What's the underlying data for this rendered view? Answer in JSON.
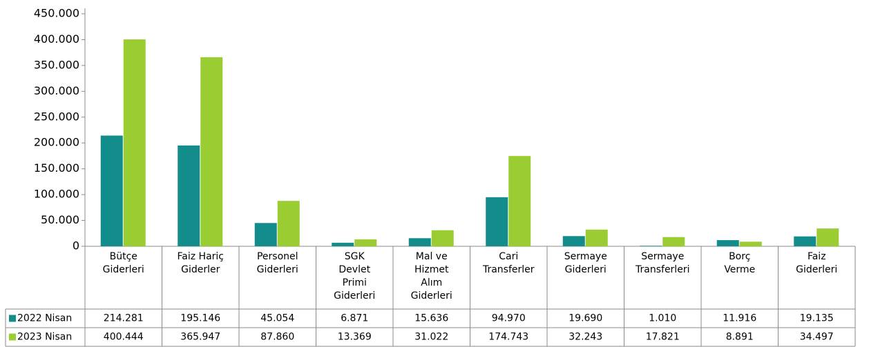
{
  "chart_data": {
    "type": "bar",
    "categories": [
      [
        "Bütçe",
        "Giderleri"
      ],
      [
        "Faiz Hariç",
        "Giderler"
      ],
      [
        "Personel",
        "Giderleri"
      ],
      [
        "SGK",
        "Devlet",
        "Primi",
        "Giderleri"
      ],
      [
        "Mal ve",
        "Hizmet",
        "Alım",
        "Giderleri"
      ],
      [
        "Cari",
        "Transferler"
      ],
      [
        "Sermaye",
        "Giderleri"
      ],
      [
        "Sermaye",
        "Transferleri"
      ],
      [
        "Borç",
        "Verme"
      ],
      [
        "Faiz",
        "Giderleri"
      ]
    ],
    "series": [
      {
        "name": "2022 Nisan",
        "color": "#138c8c",
        "values": [
          214281,
          195146,
          45054,
          6871,
          15636,
          94970,
          19690,
          1010,
          11916,
          19135
        ],
        "value_labels": [
          "214.281",
          "195.146",
          "45.054",
          "6.871",
          "15.636",
          "94.970",
          "19.690",
          "1.010",
          "11.916",
          "19.135"
        ]
      },
      {
        "name": "2023 Nisan",
        "color": "#9acd32",
        "values": [
          400444,
          365947,
          87860,
          13369,
          31022,
          174743,
          32243,
          17821,
          8891,
          34497
        ],
        "value_labels": [
          "400.444",
          "365.947",
          "87.860",
          "13.369",
          "31.022",
          "174.743",
          "32.243",
          "17.821",
          "8.891",
          "34.497"
        ]
      }
    ],
    "ylim": [
      0,
      450000
    ],
    "yticks": [
      0,
      {
        "value": 50000,
        "label": "50.000"
      },
      {
        "value": 100000,
        "label": "100.000"
      },
      {
        "value": 150000,
        "label": "150.000"
      },
      {
        "value": 200000,
        "label": "200.000"
      },
      {
        "value": 250000,
        "label": "250.000"
      },
      {
        "value": 300000,
        "label": "300.000"
      },
      {
        "value": 350000,
        "label": "350.000"
      },
      {
        "value": 400000,
        "label": "400.000"
      },
      {
        "value": 450000,
        "label": "450.000"
      }
    ],
    "grid": false
  }
}
